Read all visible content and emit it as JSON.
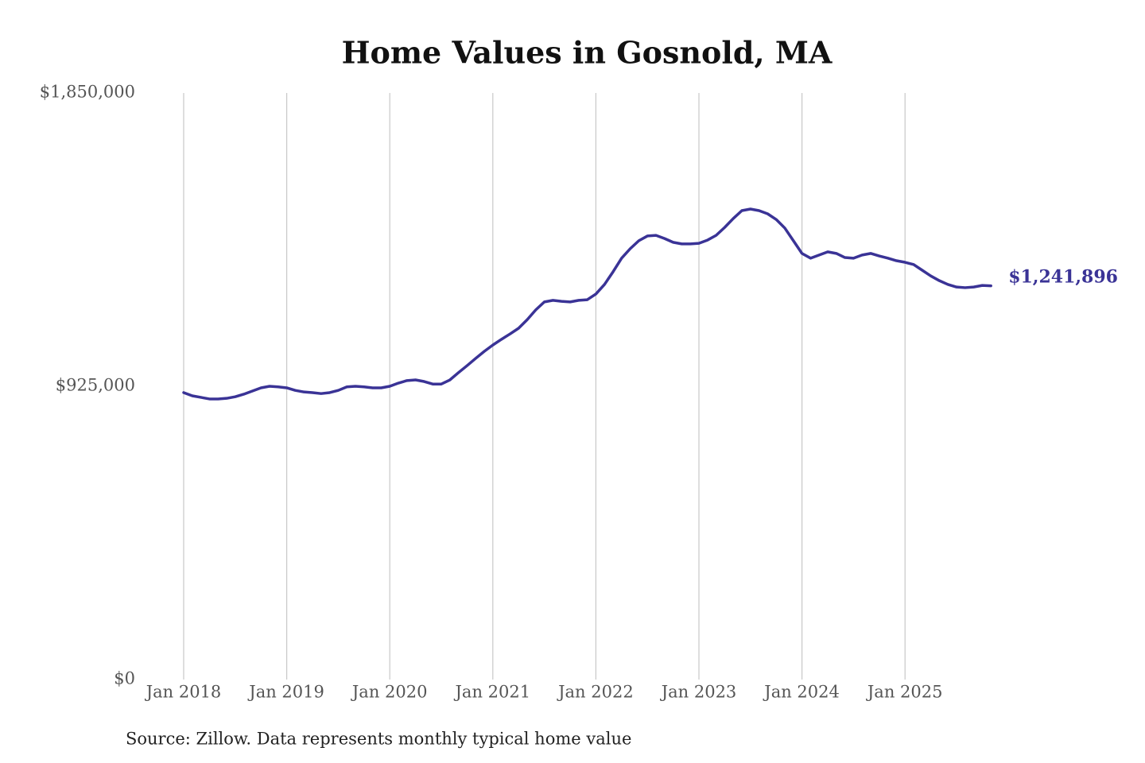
{
  "chart_data": {
    "type": "line",
    "title": "Home Values in Gosnold, MA",
    "source": "Source: Zillow. Data represents monthly typical home value",
    "x": [
      "2018-01",
      "2018-02",
      "2018-03",
      "2018-04",
      "2018-05",
      "2018-06",
      "2018-07",
      "2018-08",
      "2018-09",
      "2018-10",
      "2018-11",
      "2018-12",
      "2019-01",
      "2019-02",
      "2019-03",
      "2019-04",
      "2019-05",
      "2019-06",
      "2019-07",
      "2019-08",
      "2019-09",
      "2019-10",
      "2019-11",
      "2019-12",
      "2020-01",
      "2020-02",
      "2020-03",
      "2020-04",
      "2020-05",
      "2020-06",
      "2020-07",
      "2020-08",
      "2020-09",
      "2020-10",
      "2020-11",
      "2020-12",
      "2021-01",
      "2021-02",
      "2021-03",
      "2021-04",
      "2021-05",
      "2021-06",
      "2021-07",
      "2021-08",
      "2021-09",
      "2021-10",
      "2021-11",
      "2021-12",
      "2022-01",
      "2022-02",
      "2022-03",
      "2022-04",
      "2022-05",
      "2022-06",
      "2022-07",
      "2022-08",
      "2022-09",
      "2022-10",
      "2022-11",
      "2022-12",
      "2023-01",
      "2023-02",
      "2023-03",
      "2023-04",
      "2023-05",
      "2023-06",
      "2023-07",
      "2023-08",
      "2023-09",
      "2023-10",
      "2023-11",
      "2023-12",
      "2024-01",
      "2024-02",
      "2024-03",
      "2024-04",
      "2024-05",
      "2024-06",
      "2024-07",
      "2024-08",
      "2024-09",
      "2024-10",
      "2024-11",
      "2024-12",
      "2025-01",
      "2025-02",
      "2025-03",
      "2025-04",
      "2025-05",
      "2025-06",
      "2025-07",
      "2025-08",
      "2025-09",
      "2025-10",
      "2025-11"
    ],
    "series": [
      {
        "name": "Gosnold, MA",
        "color": "#3a3396",
        "values": [
          905000,
          895000,
          890000,
          885000,
          885000,
          887000,
          892000,
          900000,
          910000,
          920000,
          925000,
          923000,
          920000,
          912000,
          907000,
          905000,
          902000,
          905000,
          912000,
          923000,
          925000,
          923000,
          920000,
          920000,
          925000,
          935000,
          943000,
          945000,
          940000,
          932000,
          932000,
          945000,
          968000,
          990000,
          1013000,
          1035000,
          1055000,
          1073000,
          1090000,
          1108000,
          1135000,
          1166000,
          1191000,
          1196000,
          1193000,
          1191000,
          1196000,
          1198000,
          1216000,
          1246000,
          1286000,
          1329000,
          1359000,
          1384000,
          1399000,
          1401000,
          1391000,
          1379000,
          1374000,
          1374000,
          1376000,
          1386000,
          1401000,
          1426000,
          1454000,
          1479000,
          1484000,
          1479000,
          1469000,
          1451000,
          1424000,
          1384000,
          1344000,
          1329000,
          1339000,
          1349000,
          1344000,
          1331000,
          1329000,
          1339000,
          1344000,
          1336000,
          1329000,
          1321000,
          1316000,
          1309000,
          1291000,
          1273000,
          1258000,
          1246000,
          1238000,
          1236000,
          1238000,
          1243000,
          1241896
        ],
        "value_labels": [
          null,
          null,
          null,
          null,
          null,
          null,
          null,
          null,
          null,
          null,
          null,
          null,
          null,
          null,
          null,
          null,
          null,
          null,
          null,
          null,
          null,
          null,
          null,
          null,
          null,
          null,
          null,
          null,
          null,
          null,
          null,
          null,
          null,
          null,
          null,
          null,
          null,
          null,
          null,
          null,
          null,
          null,
          null,
          null,
          null,
          null,
          null,
          null,
          null,
          null,
          null,
          null,
          null,
          null,
          null,
          null,
          null,
          null,
          null,
          null,
          null,
          null,
          null,
          null,
          null,
          null,
          null,
          null,
          null,
          null,
          null,
          null,
          null,
          null,
          null,
          null,
          null,
          null,
          null,
          null,
          null,
          null,
          null,
          null,
          null,
          null,
          null,
          null,
          null,
          null,
          null,
          null,
          null,
          null,
          "$1,241,896"
        ]
      }
    ],
    "ylim": [
      0,
      1850000
    ],
    "yticks": [
      {
        "value": 0,
        "label": "$0"
      },
      {
        "value": 925000,
        "label": "$925,000"
      },
      {
        "value": 1850000,
        "label": "$1,850,000"
      }
    ],
    "xticks": [
      {
        "value": "2018-01",
        "label": "Jan 2018"
      },
      {
        "value": "2019-01",
        "label": "Jan 2019"
      },
      {
        "value": "2020-01",
        "label": "Jan 2020"
      },
      {
        "value": "2021-01",
        "label": "Jan 2021"
      },
      {
        "value": "2022-01",
        "label": "Jan 2022"
      },
      {
        "value": "2023-01",
        "label": "Jan 2023"
      },
      {
        "value": "2024-01",
        "label": "Jan 2024"
      },
      {
        "value": "2025-01",
        "label": "Jan 2025"
      }
    ],
    "grid": "x"
  }
}
